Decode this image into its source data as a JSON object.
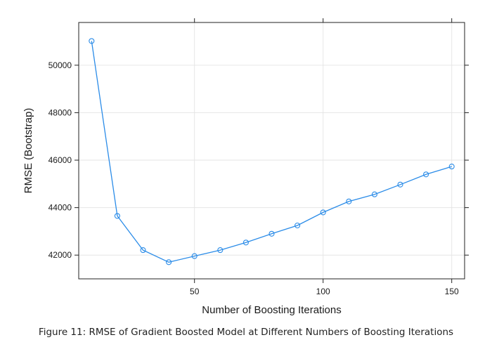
{
  "caption": "Figure 11: RMSE of Gradient Boosted Model at Different Numbers of Boosting Iterations",
  "chart_data": {
    "type": "line",
    "xlabel": "Number of Boosting Iterations",
    "ylabel": "RMSE (Bootstrap)",
    "xlim": [
      5,
      155
    ],
    "ylim": [
      41000,
      51800
    ],
    "xticks": [
      50,
      100,
      150
    ],
    "yticks": [
      42000,
      44000,
      46000,
      48000,
      50000
    ],
    "grid": true,
    "markers": "open-circle",
    "color": "#2b8ce8",
    "series": [
      {
        "x": [
          10,
          20,
          30,
          40,
          50,
          60,
          70,
          80,
          90,
          100,
          110,
          120,
          130,
          140,
          150
        ],
        "values": [
          51020,
          43650,
          42210,
          41700,
          41960,
          42210,
          42530,
          42900,
          43250,
          43800,
          44260,
          44560,
          44970,
          45400,
          45730
        ]
      }
    ]
  }
}
